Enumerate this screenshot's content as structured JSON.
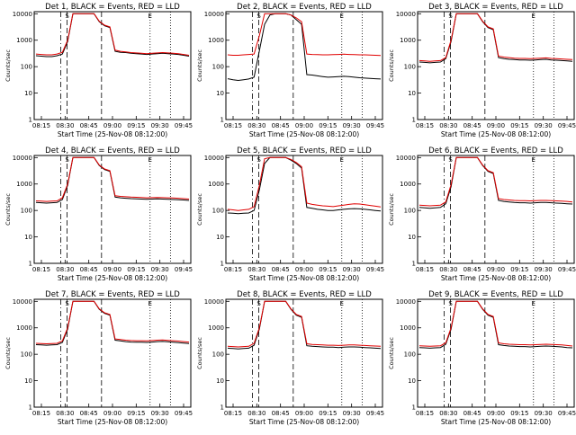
{
  "chart_data": [
    {
      "type": "line",
      "title": "Det 1, BLACK = Events, RED = LLD",
      "xlabel": "Start Time (25-Nov-08 08:12:00)",
      "ylabel": "Counts/sec",
      "x_ticks": [
        "08:15",
        "08:30",
        "08:45",
        "09:00",
        "09:15",
        "09:30",
        "09:45"
      ],
      "y_ticks": [
        "1",
        "10",
        "100",
        "1000",
        "10000"
      ],
      "ylim": [
        1,
        12000
      ],
      "y_scale": "log",
      "markers": [
        "S",
        "E"
      ],
      "series": [
        {
          "name": "Events",
          "color": "#000000",
          "values": [
            260,
            250,
            240,
            240,
            260,
            300,
            900,
            10000,
            10000,
            10000,
            10000,
            10000,
            5000,
            3500,
            3000,
            380,
            350,
            340,
            320,
            310,
            300,
            290,
            300,
            310,
            320,
            310,
            300,
            290,
            270,
            250
          ]
        },
        {
          "name": "LLD",
          "color": "#e00000",
          "values": [
            300,
            290,
            280,
            280,
            300,
            350,
            1000,
            10000,
            10000,
            10000,
            10000,
            10000,
            5200,
            3700,
            3200,
            420,
            380,
            360,
            340,
            330,
            320,
            310,
            320,
            330,
            340,
            330,
            320,
            310,
            290,
            270
          ]
        }
      ]
    },
    {
      "type": "line",
      "title": "Det 2, BLACK = Events, RED = LLD",
      "xlabel": "Start Time (25-Nov-08 08:12:00)",
      "ylabel": "Counts/sec",
      "x_ticks": [
        "08:15",
        "08:30",
        "08:45",
        "09:00",
        "09:15",
        "09:30",
        "09:45"
      ],
      "y_ticks": [
        "1",
        "10",
        "100",
        "1000",
        "10000"
      ],
      "ylim": [
        1,
        12000
      ],
      "y_scale": "log",
      "markers": [
        "S",
        "E"
      ],
      "series": [
        {
          "name": "Events",
          "color": "#000000",
          "values": [
            35,
            32,
            30,
            32,
            34,
            40,
            400,
            4000,
            9000,
            10000,
            10000,
            10000,
            9000,
            6000,
            4000,
            50,
            48,
            45,
            42,
            40,
            41,
            42,
            43,
            42,
            40,
            38,
            37,
            36,
            35,
            34
          ]
        },
        {
          "name": "LLD",
          "color": "#e00000",
          "values": [
            280,
            270,
            270,
            280,
            290,
            300,
            1500,
            10000,
            10000,
            10000,
            10000,
            10000,
            9000,
            7000,
            5000,
            300,
            290,
            285,
            280,
            280,
            285,
            290,
            295,
            290,
            285,
            280,
            280,
            275,
            270,
            265
          ]
        }
      ]
    },
    {
      "type": "line",
      "title": "Det 3, BLACK = Events, RED = LLD",
      "xlabel": "Start Time (25-Nov-08 08:12:00)",
      "ylabel": "Counts/sec",
      "x_ticks": [
        "08:15",
        "08:30",
        "08:45",
        "09:00",
        "09:15",
        "09:30",
        "09:45"
      ],
      "y_ticks": [
        "1",
        "10",
        "100",
        "1000",
        "10000"
      ],
      "ylim": [
        1,
        12000
      ],
      "y_scale": "log",
      "markers": [
        "S",
        "E"
      ],
      "series": [
        {
          "name": "Events",
          "color": "#000000",
          "values": [
            150,
            145,
            140,
            145,
            150,
            200,
            900,
            10000,
            10000,
            10000,
            10000,
            10000,
            5000,
            3000,
            2500,
            220,
            200,
            190,
            185,
            180,
            180,
            175,
            180,
            185,
            190,
            180,
            175,
            170,
            165,
            160
          ]
        },
        {
          "name": "LLD",
          "color": "#e00000",
          "values": [
            170,
            165,
            160,
            165,
            170,
            220,
            1000,
            10000,
            10000,
            10000,
            10000,
            10000,
            5200,
            3200,
            2700,
            250,
            230,
            220,
            210,
            205,
            205,
            200,
            205,
            210,
            215,
            205,
            200,
            195,
            190,
            185
          ]
        }
      ]
    },
    {
      "type": "line",
      "title": "Det 4, BLACK = Events, RED = LLD",
      "xlabel": "Start Time (25-Nov-08 08:12:00)",
      "ylabel": "Counts/sec",
      "x_ticks": [
        "08:15",
        "08:30",
        "08:45",
        "09:00",
        "09:15",
        "09:30",
        "09:45"
      ],
      "y_ticks": [
        "1",
        "10",
        "100",
        "1000",
        "10000"
      ],
      "ylim": [
        1,
        12000
      ],
      "y_scale": "log",
      "markers": [
        "S",
        "E"
      ],
      "series": [
        {
          "name": "Events",
          "color": "#000000",
          "values": [
            200,
            195,
            190,
            195,
            200,
            260,
            900,
            10000,
            10000,
            10000,
            10000,
            10000,
            5000,
            3500,
            3000,
            320,
            300,
            290,
            280,
            275,
            270,
            265,
            270,
            275,
            270,
            265,
            260,
            255,
            250,
            240
          ]
        },
        {
          "name": "LLD",
          "color": "#e00000",
          "values": [
            230,
            225,
            220,
            225,
            230,
            300,
            1000,
            10000,
            10000,
            10000,
            10000,
            10000,
            5200,
            3700,
            3200,
            360,
            340,
            330,
            320,
            315,
            310,
            300,
            305,
            310,
            305,
            300,
            295,
            290,
            280,
            270
          ]
        }
      ]
    },
    {
      "type": "line",
      "title": "Det 5, BLACK = Events, RED = LLD",
      "xlabel": "Start Time (25-Nov-08 08:12:00)",
      "ylabel": "Counts/sec",
      "x_ticks": [
        "08:15",
        "08:30",
        "08:45",
        "09:00",
        "09:15",
        "09:30",
        "09:45"
      ],
      "y_ticks": [
        "1",
        "10",
        "100",
        "1000",
        "10000"
      ],
      "ylim": [
        1,
        12000
      ],
      "y_scale": "log",
      "markers": [
        "S",
        "E"
      ],
      "series": [
        {
          "name": "Events",
          "color": "#000000",
          "values": [
            80,
            78,
            75,
            78,
            80,
            100,
            600,
            6000,
            10000,
            10000,
            10000,
            10000,
            8000,
            6000,
            4000,
            130,
            120,
            110,
            105,
            100,
            100,
            105,
            110,
            115,
            118,
            115,
            110,
            105,
            100,
            95
          ]
        },
        {
          "name": "LLD",
          "color": "#e00000",
          "values": [
            110,
            105,
            100,
            105,
            110,
            140,
            900,
            9000,
            10000,
            10000,
            10000,
            10000,
            8500,
            6500,
            4500,
            190,
            170,
            160,
            150,
            145,
            140,
            150,
            160,
            170,
            180,
            175,
            165,
            155,
            145,
            135
          ]
        }
      ]
    },
    {
      "type": "line",
      "title": "Det 6, BLACK = Events, RED = LLD",
      "xlabel": "Start Time (25-Nov-08 08:12:00)",
      "ylabel": "Counts/sec",
      "x_ticks": [
        "08:15",
        "08:30",
        "08:45",
        "09:00",
        "09:15",
        "09:30",
        "09:45"
      ],
      "y_ticks": [
        "1",
        "10",
        "100",
        "1000",
        "10000"
      ],
      "ylim": [
        1,
        12000
      ],
      "y_scale": "log",
      "markers": [
        "S",
        "E"
      ],
      "series": [
        {
          "name": "Events",
          "color": "#000000",
          "values": [
            130,
            125,
            120,
            125,
            130,
            180,
            800,
            10000,
            10000,
            10000,
            10000,
            10000,
            5000,
            3000,
            2500,
            240,
            220,
            210,
            200,
            195,
            195,
            190,
            195,
            200,
            200,
            195,
            190,
            185,
            180,
            175
          ]
        },
        {
          "name": "LLD",
          "color": "#e00000",
          "values": [
            160,
            155,
            150,
            155,
            160,
            210,
            950,
            10000,
            10000,
            10000,
            10000,
            10000,
            5200,
            3200,
            2700,
            280,
            260,
            250,
            240,
            235,
            235,
            230,
            235,
            240,
            240,
            235,
            230,
            225,
            220,
            210
          ]
        }
      ]
    },
    {
      "type": "line",
      "title": "Det 7, BLACK = Events, RED = LLD",
      "xlabel": "Start Time (25-Nov-08 08:12:00)",
      "ylabel": "Counts/sec",
      "x_ticks": [
        "08:15",
        "08:30",
        "08:45",
        "09:00",
        "09:15",
        "09:30",
        "09:45"
      ],
      "y_ticks": [
        "1",
        "10",
        "100",
        "1000",
        "10000"
      ],
      "ylim": [
        1,
        12000
      ],
      "y_scale": "log",
      "markers": [
        "S",
        "E"
      ],
      "series": [
        {
          "name": "Events",
          "color": "#000000",
          "values": [
            230,
            225,
            220,
            225,
            230,
            280,
            900,
            10000,
            10000,
            10000,
            10000,
            10000,
            5000,
            3500,
            3000,
            340,
            320,
            300,
            290,
            285,
            285,
            280,
            290,
            300,
            305,
            295,
            285,
            275,
            265,
            255
          ]
        },
        {
          "name": "LLD",
          "color": "#e00000",
          "values": [
            260,
            255,
            250,
            255,
            260,
            320,
            1000,
            10000,
            10000,
            10000,
            10000,
            10000,
            5200,
            3700,
            3200,
            380,
            360,
            340,
            330,
            325,
            325,
            320,
            330,
            340,
            345,
            335,
            325,
            315,
            300,
            290
          ]
        }
      ]
    },
    {
      "type": "line",
      "title": "Det 8, BLACK = Events, RED = LLD",
      "xlabel": "Start Time (25-Nov-08 08:12:00)",
      "ylabel": "Counts/sec",
      "x_ticks": [
        "08:15",
        "08:30",
        "08:45",
        "09:00",
        "09:15",
        "09:30",
        "09:45"
      ],
      "y_ticks": [
        "1",
        "10",
        "100",
        "1000",
        "10000"
      ],
      "ylim": [
        1,
        12000
      ],
      "y_scale": "log",
      "markers": [
        "S",
        "E"
      ],
      "series": [
        {
          "name": "Events",
          "color": "#000000",
          "values": [
            170,
            165,
            160,
            165,
            170,
            220,
            900,
            10000,
            10000,
            10000,
            10000,
            10000,
            5000,
            3000,
            2500,
            210,
            200,
            195,
            190,
            185,
            185,
            180,
            185,
            190,
            190,
            185,
            180,
            175,
            170,
            165
          ]
        },
        {
          "name": "LLD",
          "color": "#e00000",
          "values": [
            200,
            195,
            190,
            195,
            200,
            260,
            1000,
            10000,
            10000,
            10000,
            10000,
            10000,
            5200,
            3200,
            2700,
            250,
            235,
            230,
            225,
            220,
            220,
            215,
            220,
            225,
            225,
            220,
            215,
            210,
            205,
            200
          ]
        }
      ]
    },
    {
      "type": "line",
      "title": "Det 9, BLACK = Events, RED = LLD",
      "xlabel": "Start Time (25-Nov-08 08:12:00)",
      "ylabel": "Counts/sec",
      "x_ticks": [
        "08:15",
        "08:30",
        "08:45",
        "09:00",
        "09:15",
        "09:30",
        "09:45"
      ],
      "y_ticks": [
        "1",
        "10",
        "100",
        "1000",
        "10000"
      ],
      "ylim": [
        1,
        12000
      ],
      "y_scale": "log",
      "markers": [
        "S",
        "E"
      ],
      "series": [
        {
          "name": "Events",
          "color": "#000000",
          "values": [
            180,
            175,
            170,
            175,
            180,
            240,
            900,
            10000,
            10000,
            10000,
            10000,
            10000,
            5000,
            3000,
            2500,
            230,
            215,
            205,
            200,
            195,
            195,
            190,
            195,
            200,
            205,
            200,
            195,
            190,
            180,
            175
          ]
        },
        {
          "name": "LLD",
          "color": "#e00000",
          "values": [
            210,
            205,
            200,
            205,
            210,
            270,
            1000,
            10000,
            10000,
            10000,
            10000,
            10000,
            5200,
            3200,
            2700,
            270,
            250,
            240,
            235,
            230,
            230,
            225,
            230,
            235,
            240,
            235,
            230,
            225,
            215,
            205
          ]
        }
      ]
    }
  ]
}
